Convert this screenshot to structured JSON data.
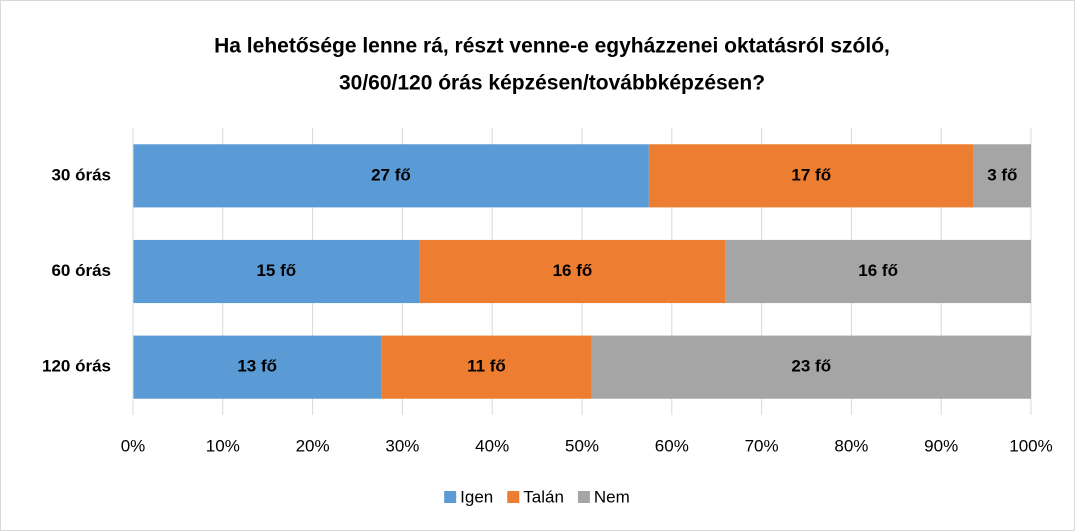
{
  "chart_data": {
    "type": "bar",
    "orientation": "horizontal",
    "stacking": "percent",
    "title": [
      "Ha lehetősége lenne rá, részt venne-e egyházzenei oktatásról szóló,",
      "30/60/120 órás képzésen/továbbképzésen?"
    ],
    "categories": [
      "30 órás",
      "60 órás",
      "120 órás"
    ],
    "series": [
      {
        "name": "Igen",
        "color": "#5b9bd5",
        "values": [
          27,
          15,
          13
        ],
        "value_labels": [
          "27 fő",
          "15 fő",
          "13 fő"
        ]
      },
      {
        "name": "Talán",
        "color": "#ed7d31",
        "values": [
          17,
          16,
          11
        ],
        "value_labels": [
          "17 fő",
          "16 fő",
          "11 fő"
        ]
      },
      {
        "name": "Nem",
        "color": "#a5a5a5",
        "values": [
          3,
          16,
          23
        ],
        "value_labels": [
          "3 fő",
          "16 fő",
          "23 fő"
        ]
      }
    ],
    "xlim": [
      0,
      100
    ],
    "xticks": [
      {
        "value": 0,
        "label": "0%"
      },
      {
        "value": 10,
        "label": "10%"
      },
      {
        "value": 20,
        "label": "20%"
      },
      {
        "value": 30,
        "label": "30%"
      },
      {
        "value": 40,
        "label": "40%"
      },
      {
        "value": 50,
        "label": "50%"
      },
      {
        "value": 60,
        "label": "60%"
      },
      {
        "value": 70,
        "label": "70%"
      },
      {
        "value": 80,
        "label": "80%"
      },
      {
        "value": 90,
        "label": "90%"
      },
      {
        "value": 100,
        "label": "100%"
      }
    ],
    "grid": true,
    "legend": "bottom"
  }
}
